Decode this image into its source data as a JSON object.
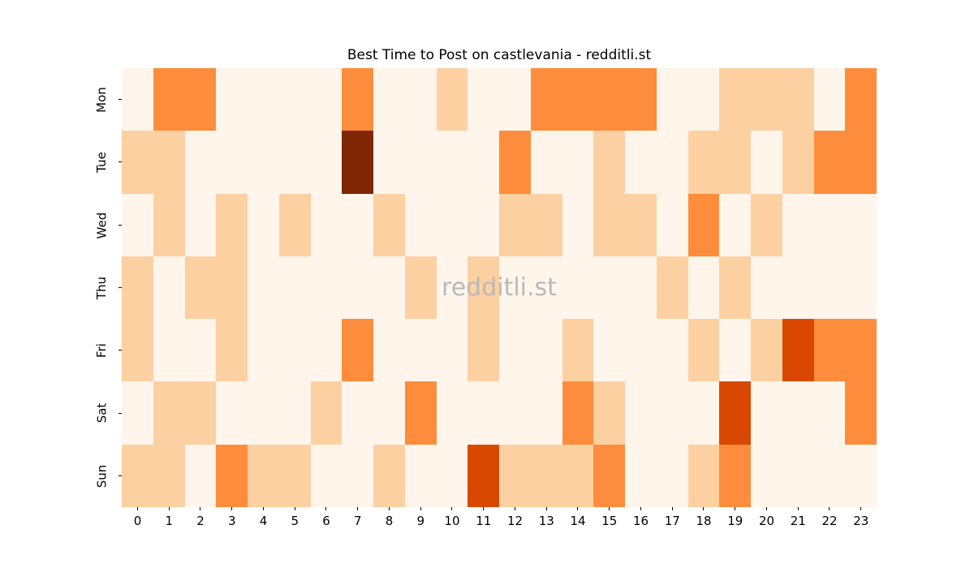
{
  "title": "Best Time to Post on castlevania - redditli.st",
  "watermark": "redditli.st",
  "chart_data": {
    "type": "heatmap",
    "title": "Best Time to Post on castlevania - redditli.st",
    "xlabel": "",
    "ylabel": "",
    "x_labels": [
      "0",
      "1",
      "2",
      "3",
      "4",
      "5",
      "6",
      "7",
      "8",
      "9",
      "10",
      "11",
      "12",
      "13",
      "14",
      "15",
      "16",
      "17",
      "18",
      "19",
      "20",
      "21",
      "22",
      "23"
    ],
    "y_labels": [
      "Mon",
      "Tue",
      "Wed",
      "Thu",
      "Fri",
      "Sat",
      "Sun"
    ],
    "values": [
      [
        0,
        2,
        2,
        0,
        0,
        0,
        0,
        2,
        0,
        0,
        1,
        0,
        0,
        2,
        2,
        2,
        2,
        0,
        0,
        1,
        1,
        1,
        0,
        2
      ],
      [
        1,
        1,
        0,
        0,
        0,
        0,
        0,
        4,
        0,
        0,
        0,
        0,
        2,
        0,
        0,
        1,
        0,
        0,
        1,
        1,
        0,
        1,
        2,
        2
      ],
      [
        0,
        1,
        0,
        1,
        0,
        1,
        0,
        0,
        1,
        0,
        0,
        0,
        1,
        1,
        0,
        1,
        1,
        0,
        2,
        0,
        1,
        0,
        0,
        0
      ],
      [
        1,
        0,
        1,
        1,
        0,
        0,
        0,
        0,
        0,
        1,
        0,
        1,
        0,
        0,
        0,
        0,
        0,
        1,
        0,
        1,
        0,
        0,
        0,
        0
      ],
      [
        1,
        0,
        0,
        1,
        0,
        0,
        0,
        2,
        0,
        0,
        0,
        1,
        0,
        0,
        1,
        0,
        0,
        0,
        1,
        0,
        1,
        3,
        2,
        2
      ],
      [
        0,
        1,
        1,
        0,
        0,
        0,
        1,
        0,
        0,
        2,
        0,
        0,
        0,
        0,
        2,
        1,
        0,
        0,
        0,
        3,
        0,
        0,
        0,
        2
      ],
      [
        1,
        1,
        0,
        2,
        1,
        1,
        0,
        0,
        1,
        0,
        0,
        3,
        1,
        1,
        1,
        2,
        0,
        0,
        1,
        2,
        0,
        0,
        0,
        0
      ]
    ],
    "value_range": [
      0,
      4
    ],
    "level_colors": [
      "#fff5eb",
      "#fdd0a2",
      "#fd8d3c",
      "#d94801",
      "#7f2704"
    ],
    "colormap": "Oranges",
    "legend_position": "none",
    "grid": false
  }
}
